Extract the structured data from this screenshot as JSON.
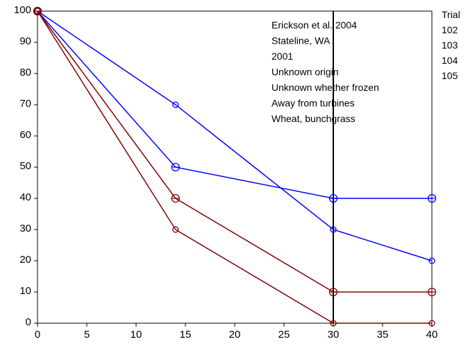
{
  "chart_data": {
    "type": "line",
    "title": "",
    "xlabel": "",
    "ylabel": "",
    "xlim": [
      0,
      40
    ],
    "ylim": [
      0,
      100
    ],
    "x_ticks": [
      0,
      5,
      10,
      15,
      20,
      25,
      30,
      35,
      40
    ],
    "y_ticks": [
      0,
      10,
      20,
      30,
      40,
      50,
      60,
      70,
      80,
      90,
      100
    ],
    "grid": false,
    "reference_line_x": 30,
    "annotation_lines": [
      "Erickson et al. 2004",
      "Stateline, WA",
      "2001",
      "Unknown origin",
      "Unknown whether frozen",
      "Away from turbines",
      "Wheat, bunchgrass"
    ],
    "legend_title": "Trial",
    "legend_placement": "right",
    "series": [
      {
        "name": "102",
        "color": "#0000ff",
        "marker": "circle",
        "x": [
          0,
          14,
          30,
          40
        ],
        "y": [
          100,
          70,
          30,
          20
        ]
      },
      {
        "name": "103",
        "color": "#0000ff",
        "marker": "diamond",
        "x": [
          0,
          14,
          30,
          40
        ],
        "y": [
          100,
          50,
          40,
          40
        ]
      },
      {
        "name": "104",
        "color": "#800000",
        "marker": "diamond",
        "x": [
          0,
          14,
          30,
          40
        ],
        "y": [
          100,
          40,
          10,
          10
        ]
      },
      {
        "name": "105",
        "color": "#800000",
        "marker": "circle",
        "x": [
          0,
          14,
          30,
          40
        ],
        "y": [
          100,
          30,
          0,
          0
        ]
      }
    ]
  }
}
